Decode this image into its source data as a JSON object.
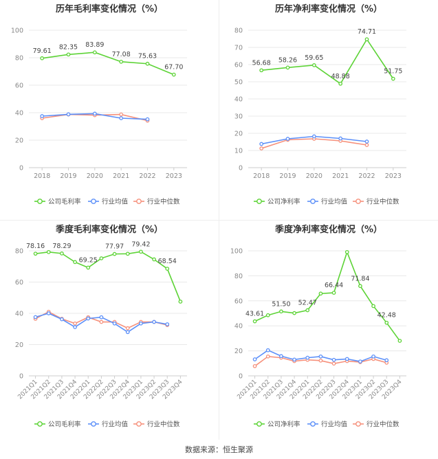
{
  "source": "数据来源：恒生聚源",
  "legend_labels": [
    "公司毛利率",
    "行业均值",
    "行业中位数"
  ],
  "colors": {
    "company": "#5cd335",
    "mean": "#5b8ff9",
    "median": "#f6907b"
  },
  "chart_data": [
    {
      "type": "line",
      "title": "历年毛利率变化情况（%）",
      "categories": [
        "2018",
        "2019",
        "2020",
        "2021",
        "2022",
        "2023"
      ],
      "ylim": [
        0,
        100
      ],
      "yticks": [
        0,
        20,
        40,
        60,
        80,
        100
      ],
      "grid": true,
      "legend_position": "bottom",
      "series": [
        {
          "name": "公司毛利率",
          "values": [
            79.61,
            82.35,
            83.89,
            77.08,
            75.63,
            67.7
          ],
          "labels": [
            "79.61",
            "82.35",
            "83.89",
            "77.08",
            "75.63",
            "67.70"
          ]
        },
        {
          "name": "行业均值",
          "values": [
            37.5,
            38.8,
            39.3,
            36.0,
            35.2,
            null
          ]
        },
        {
          "name": "行业中位数",
          "values": [
            36.0,
            38.7,
            38.2,
            38.7,
            34.2,
            null
          ]
        }
      ]
    },
    {
      "type": "line",
      "title": "历年净利率变化情况（%）",
      "categories": [
        "2018",
        "2019",
        "2020",
        "2021",
        "2022",
        "2023"
      ],
      "ylim": [
        0,
        80
      ],
      "yticks": [
        0,
        10,
        20,
        30,
        40,
        50,
        60,
        70,
        80
      ],
      "grid": true,
      "legend_position": "bottom",
      "series": [
        {
          "name": "公司净利率",
          "values": [
            56.68,
            58.26,
            59.65,
            48.88,
            74.71,
            51.75
          ],
          "labels": [
            "56.68",
            "58.26",
            "59.65",
            "48.88",
            "74.71",
            "51.75"
          ]
        },
        {
          "name": "行业均值",
          "values": [
            13.8,
            16.8,
            18.2,
            17.0,
            15.2,
            null
          ]
        },
        {
          "name": "行业中位数",
          "values": [
            11.2,
            16.2,
            16.8,
            15.6,
            13.2,
            null
          ]
        }
      ]
    },
    {
      "type": "line",
      "title": "季度毛利率变化情况（%）",
      "categories": [
        "2021Q1",
        "2021Q2",
        "2021Q3",
        "2021Q4",
        "2022Q1",
        "2022Q2",
        "2022Q3",
        "2022Q4",
        "2023Q1",
        "2023Q2",
        "2023Q3",
        "2023Q4"
      ],
      "ylim": [
        0,
        80
      ],
      "yticks": [
        0,
        20,
        40,
        60,
        80
      ],
      "grid": true,
      "legend_position": "bottom",
      "series": [
        {
          "name": "公司毛利率",
          "values": [
            78.16,
            79.2,
            78.29,
            72.8,
            69.25,
            75.2,
            77.97,
            78.1,
            79.42,
            74.5,
            68.54,
            47.5
          ],
          "labels": [
            "78.16",
            "",
            "78.29",
            "",
            "69.25",
            "",
            "77.97",
            "",
            "79.42",
            "",
            "68.54",
            ""
          ]
        },
        {
          "name": "行业均值",
          "values": [
            37.6,
            40.0,
            36.2,
            31.2,
            36.7,
            37.5,
            33.5,
            28.0,
            33.5,
            34.5,
            33.0,
            null
          ]
        },
        {
          "name": "行业中位数",
          "values": [
            36.5,
            41.0,
            36.5,
            33.5,
            37.5,
            34.5,
            34.5,
            30.5,
            34.5,
            34.5,
            32.5,
            null
          ]
        }
      ]
    },
    {
      "type": "line",
      "title": "季度净利率变化情况（%）",
      "categories": [
        "2021Q1",
        "2021Q2",
        "2021Q3",
        "2021Q4",
        "2022Q1",
        "2022Q2",
        "2022Q3",
        "2022Q4",
        "2023Q1",
        "2023Q2",
        "2023Q3",
        "2023Q4"
      ],
      "ylim": [
        0,
        100
      ],
      "yticks": [
        0,
        20,
        40,
        60,
        80,
        100
      ],
      "grid": true,
      "legend_position": "bottom",
      "series": [
        {
          "name": "公司净利率",
          "values": [
            43.61,
            48.5,
            51.5,
            50.2,
            52.47,
            65.8,
            66.44,
            99.0,
            71.84,
            55.8,
            42.48,
            28.0
          ],
          "labels": [
            "43.61",
            "",
            "51.50",
            "",
            "52.47",
            "",
            "66.44",
            "",
            "71.84",
            "",
            "42.48",
            ""
          ]
        },
        {
          "name": "行业均值",
          "values": [
            13.2,
            20.5,
            15.8,
            13.0,
            14.5,
            15.5,
            12.8,
            13.5,
            11.5,
            15.5,
            12.5,
            null
          ]
        },
        {
          "name": "行业中位数",
          "values": [
            7.8,
            15.5,
            14.5,
            11.8,
            12.8,
            12.2,
            9.8,
            11.8,
            11.0,
            13.5,
            10.5,
            null
          ]
        }
      ]
    }
  ]
}
